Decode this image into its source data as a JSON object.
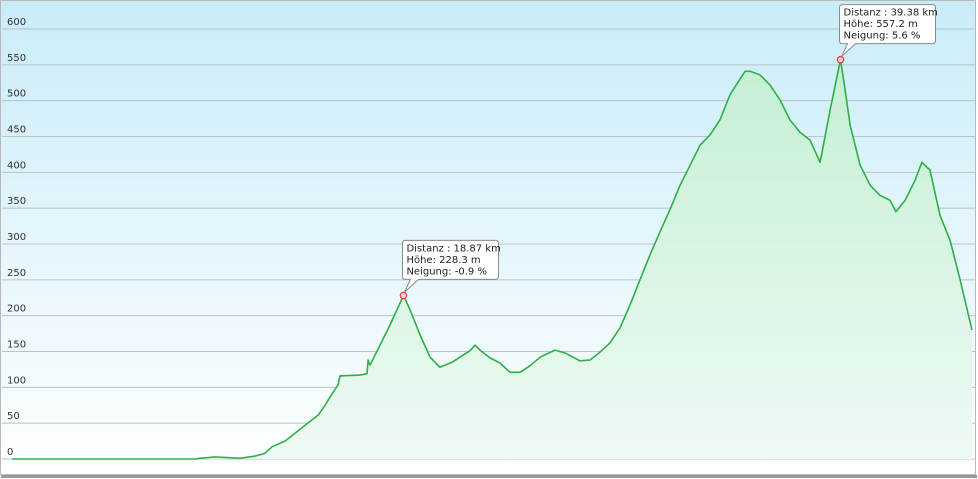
{
  "chart_data": {
    "type": "area",
    "color": "#2eaf47",
    "fill": "#d8f5e0",
    "grid": true,
    "xlim": [
      0.5,
      45.55
    ],
    "ylim": [
      0,
      600
    ],
    "yticks": [
      0,
      50,
      100,
      150,
      200,
      250,
      300,
      350,
      400,
      450,
      500,
      550,
      600
    ],
    "x": [
      0.5,
      9.09,
      9.32,
      10.03,
      11.2,
      11.9,
      12.37,
      12.7,
      13.31,
      13.78,
      14.25,
      14.86,
      15.19,
      15.56,
      15.8,
      15.89,
      16.83,
      17.16,
      17.21,
      17.3,
      17.77,
      18.24,
      18.87,
      19.18,
      19.65,
      20.12,
      20.58,
      21.15,
      21.52,
      21.99,
      22.23,
      22.46,
      22.93,
      23.4,
      23.87,
      24.34,
      24.81,
      25.28,
      25.98,
      26.45,
      27.15,
      27.62,
      28.09,
      28.56,
      29.03,
      29.5,
      29.97,
      30.44,
      30.91,
      31.38,
      31.85,
      32.32,
      32.79,
      33.25,
      33.72,
      34.19,
      34.66,
      34.9,
      35.13,
      35.6,
      36.07,
      36.54,
      37.01,
      37.48,
      37.95,
      38.42,
      38.89,
      39.38,
      39.59,
      39.83,
      40.3,
      40.77,
      41.23,
      41.7,
      41.98,
      42.41,
      42.88,
      43.2,
      43.58,
      44.05,
      44.52,
      44.99,
      45.55
    ],
    "values": [
      0,
      0,
      1,
      3,
      1,
      4,
      8,
      17,
      25,
      36,
      47,
      61,
      75,
      93,
      103,
      116,
      117,
      119,
      138,
      131,
      159,
      187,
      228.3,
      208,
      173,
      142,
      128,
      135,
      142,
      151,
      159,
      152,
      141,
      134,
      121,
      121,
      130,
      142,
      152,
      148,
      137,
      138,
      149,
      162,
      183,
      215,
      250,
      285,
      317,
      348,
      382,
      410,
      438,
      452,
      473,
      508,
      530,
      541,
      541,
      536,
      522,
      501,
      473,
      456,
      445,
      414,
      487,
      557.2,
      516,
      466,
      410,
      382,
      368,
      361,
      345,
      361,
      389,
      414,
      403,
      340,
      305,
      250,
      180
    ],
    "annotations": [
      {
        "x": 18.87,
        "y": 228.3,
        "lines": [
          "Distanz : 18.87 km",
          "Höhe: 228.3 m",
          "Neigung: -0.9 %"
        ]
      },
      {
        "x": 39.38,
        "y": 557.2,
        "lines": [
          "Distanz : 39.38 km",
          "Höhe: 557.2 m",
          "Neigung: 5.6 %"
        ]
      }
    ]
  }
}
